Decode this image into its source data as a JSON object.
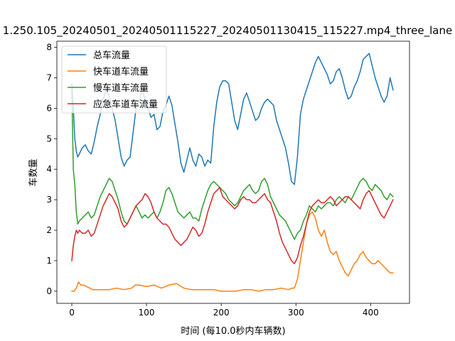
{
  "chart_data": {
    "type": "line",
    "title": "1.250.105_20240501_20240501115227_20240501130415_115227.mp4_three_lane",
    "xlabel": "时间 (每10.0秒内车辆数)",
    "ylabel": "车数量",
    "xlim": [
      -20,
      452
    ],
    "ylim": [
      -0.4,
      8.2
    ],
    "xticks": [
      0,
      100,
      200,
      300,
      400
    ],
    "yticks": [
      0,
      1,
      2,
      3,
      4,
      5,
      6,
      7,
      8
    ],
    "grid": false,
    "legend_position": "top-left",
    "series": [
      {
        "name": "总车流量",
        "color": "#1f77b4",
        "x": [
          0,
          2,
          4,
          6,
          8,
          10,
          14,
          18,
          22,
          26,
          30,
          34,
          38,
          42,
          46,
          50,
          54,
          58,
          62,
          66,
          70,
          74,
          78,
          82,
          86,
          90,
          94,
          98,
          102,
          106,
          110,
          114,
          118,
          122,
          126,
          130,
          134,
          138,
          142,
          146,
          150,
          154,
          158,
          162,
          166,
          170,
          174,
          178,
          182,
          186,
          190,
          194,
          198,
          202,
          206,
          210,
          214,
          218,
          222,
          226,
          230,
          234,
          238,
          242,
          246,
          250,
          254,
          258,
          262,
          266,
          270,
          274,
          278,
          282,
          286,
          290,
          294,
          298,
          302,
          306,
          310,
          314,
          318,
          322,
          326,
          330,
          334,
          338,
          342,
          346,
          350,
          354,
          358,
          362,
          366,
          370,
          374,
          378,
          382,
          386,
          390,
          394,
          398,
          402,
          406,
          410,
          414,
          418,
          422,
          426,
          430
        ],
        "values": [
          6.8,
          6.0,
          5.0,
          4.6,
          4.4,
          4.5,
          4.7,
          4.8,
          4.6,
          4.5,
          4.9,
          5.4,
          5.8,
          6.3,
          6.6,
          6.4,
          6.0,
          5.6,
          5.0,
          4.4,
          4.1,
          4.3,
          4.4,
          5.2,
          6.0,
          6.2,
          6.6,
          6.3,
          6.0,
          5.7,
          5.8,
          5.3,
          5.4,
          5.9,
          6.1,
          6.4,
          6.1,
          5.5,
          4.9,
          4.2,
          3.9,
          4.3,
          4.7,
          4.3,
          4.1,
          4.5,
          4.4,
          4.1,
          4.3,
          4.2,
          5.4,
          6.2,
          6.7,
          6.9,
          6.9,
          6.8,
          6.2,
          5.6,
          5.3,
          5.8,
          6.3,
          6.5,
          6.2,
          5.9,
          5.6,
          5.7,
          6.0,
          6.2,
          6.3,
          6.2,
          6.1,
          5.6,
          5.3,
          5.0,
          4.7,
          4.2,
          3.6,
          3.5,
          4.4,
          5.8,
          6.3,
          6.6,
          6.9,
          7.2,
          7.5,
          7.7,
          7.5,
          7.3,
          7.1,
          6.8,
          6.9,
          7.2,
          7.3,
          7.0,
          6.6,
          6.3,
          6.4,
          6.7,
          6.9,
          7.2,
          7.6,
          7.7,
          7.8,
          7.4,
          7.0,
          6.7,
          6.4,
          6.2,
          6.4,
          7.0,
          6.6
        ]
      },
      {
        "name": "快车道车流量",
        "color": "#ff7f0e",
        "x": [
          0,
          3,
          6,
          9,
          12,
          16,
          20,
          24,
          28,
          32,
          40,
          50,
          60,
          70,
          80,
          85,
          90,
          100,
          110,
          120,
          130,
          140,
          150,
          160,
          170,
          180,
          190,
          200,
          210,
          220,
          230,
          240,
          250,
          260,
          270,
          280,
          290,
          295,
          298,
          302,
          306,
          310,
          314,
          318,
          322,
          326,
          330,
          334,
          338,
          342,
          346,
          350,
          354,
          358,
          362,
          366,
          370,
          374,
          378,
          382,
          386,
          390,
          394,
          398,
          402,
          406,
          410,
          414,
          418,
          422,
          426,
          430
        ],
        "values": [
          0.0,
          0.0,
          0.1,
          0.3,
          0.2,
          0.2,
          0.15,
          0.1,
          0.05,
          0.05,
          0.05,
          0.05,
          0.1,
          0.05,
          0.1,
          0.2,
          0.2,
          0.15,
          0.2,
          0.1,
          0.2,
          0.25,
          0.1,
          0.05,
          0.05,
          0.05,
          0.05,
          0.0,
          0.0,
          0.0,
          0.05,
          0.05,
          0.0,
          0.05,
          0.05,
          0.1,
          0.05,
          0.1,
          0.1,
          0.4,
          1.0,
          1.6,
          2.2,
          2.5,
          2.6,
          2.4,
          2.0,
          1.8,
          2.0,
          1.6,
          1.3,
          1.2,
          1.3,
          1.0,
          0.8,
          0.6,
          0.5,
          0.7,
          0.9,
          1.0,
          1.2,
          1.3,
          1.1,
          1.0,
          0.9,
          0.9,
          1.0,
          0.9,
          0.8,
          0.7,
          0.6,
          0.6
        ]
      },
      {
        "name": "慢车道车流量",
        "color": "#2ca02c",
        "x": [
          0,
          2,
          4,
          6,
          8,
          10,
          14,
          18,
          22,
          26,
          30,
          34,
          38,
          42,
          46,
          50,
          54,
          58,
          62,
          66,
          70,
          74,
          78,
          82,
          86,
          90,
          94,
          98,
          102,
          106,
          110,
          114,
          118,
          122,
          126,
          130,
          134,
          138,
          142,
          146,
          150,
          154,
          158,
          162,
          166,
          170,
          174,
          178,
          182,
          186,
          190,
          194,
          198,
          202,
          206,
          210,
          214,
          218,
          222,
          226,
          230,
          234,
          238,
          242,
          246,
          250,
          254,
          258,
          262,
          266,
          270,
          274,
          278,
          282,
          286,
          290,
          294,
          298,
          302,
          306,
          310,
          314,
          318,
          322,
          326,
          330,
          334,
          338,
          342,
          346,
          350,
          354,
          358,
          362,
          366,
          370,
          374,
          378,
          382,
          386,
          390,
          394,
          398,
          402,
          406,
          410,
          414,
          418,
          422,
          426,
          430
        ],
        "values": [
          6.6,
          4.0,
          3.5,
          2.6,
          2.2,
          2.3,
          2.4,
          2.5,
          2.6,
          2.4,
          2.5,
          2.8,
          3.1,
          3.3,
          3.5,
          3.7,
          3.6,
          3.3,
          3.0,
          2.6,
          2.3,
          2.2,
          2.4,
          2.6,
          2.8,
          2.6,
          2.4,
          2.5,
          2.4,
          2.5,
          2.6,
          2.4,
          2.6,
          2.9,
          3.3,
          3.4,
          3.2,
          2.9,
          2.6,
          2.5,
          2.4,
          2.5,
          2.6,
          2.4,
          2.4,
          2.3,
          2.7,
          3.0,
          3.3,
          3.5,
          3.6,
          3.5,
          3.4,
          3.3,
          3.2,
          3.0,
          2.9,
          2.8,
          2.9,
          3.1,
          3.3,
          3.4,
          3.5,
          3.3,
          3.2,
          3.3,
          3.6,
          3.7,
          3.5,
          3.1,
          2.9,
          2.7,
          2.5,
          2.4,
          2.3,
          2.1,
          1.9,
          1.7,
          1.9,
          2.0,
          2.3,
          2.5,
          2.8,
          2.7,
          2.6,
          2.8,
          2.7,
          2.8,
          2.9,
          2.9,
          2.8,
          3.0,
          3.1,
          3.0,
          2.9,
          3.1,
          3.0,
          3.2,
          3.4,
          3.6,
          3.7,
          3.6,
          3.4,
          3.3,
          3.5,
          3.4,
          3.3,
          3.1,
          3.0,
          3.2,
          3.1
        ]
      },
      {
        "name": "应急车道车流量",
        "color": "#d62728",
        "x": [
          0,
          2,
          4,
          6,
          8,
          10,
          14,
          18,
          22,
          26,
          30,
          34,
          38,
          42,
          46,
          50,
          54,
          58,
          62,
          66,
          70,
          74,
          78,
          82,
          86,
          90,
          94,
          98,
          102,
          106,
          110,
          114,
          118,
          122,
          126,
          130,
          134,
          138,
          142,
          146,
          150,
          154,
          158,
          162,
          166,
          170,
          174,
          178,
          182,
          186,
          190,
          194,
          198,
          202,
          206,
          210,
          214,
          218,
          222,
          226,
          230,
          234,
          238,
          242,
          246,
          250,
          254,
          258,
          262,
          266,
          270,
          274,
          278,
          282,
          286,
          290,
          294,
          298,
          302,
          306,
          310,
          314,
          318,
          322,
          326,
          330,
          334,
          338,
          342,
          346,
          350,
          354,
          358,
          362,
          366,
          370,
          374,
          378,
          382,
          386,
          390,
          394,
          398,
          402,
          406,
          410,
          414,
          418,
          422,
          426,
          430
        ],
        "values": [
          1.0,
          1.5,
          1.8,
          2.0,
          1.9,
          2.0,
          1.9,
          1.9,
          2.0,
          1.8,
          1.9,
          2.2,
          2.5,
          2.8,
          3.0,
          3.2,
          3.1,
          2.9,
          2.7,
          2.3,
          2.1,
          2.2,
          2.4,
          2.6,
          2.8,
          2.9,
          3.0,
          3.2,
          3.1,
          2.9,
          2.6,
          2.4,
          2.3,
          2.2,
          2.2,
          2.1,
          1.9,
          1.7,
          1.6,
          1.5,
          1.6,
          1.7,
          1.9,
          2.1,
          2.0,
          1.8,
          1.9,
          2.2,
          2.6,
          2.9,
          3.2,
          3.3,
          3.4,
          3.1,
          3.0,
          2.9,
          2.8,
          2.7,
          2.8,
          3.0,
          3.1,
          3.0,
          3.0,
          2.9,
          2.9,
          3.0,
          3.1,
          3.2,
          3.0,
          2.9,
          2.6,
          2.3,
          1.9,
          1.6,
          1.4,
          1.2,
          1.0,
          0.9,
          1.1,
          1.5,
          1.8,
          2.2,
          2.6,
          2.8,
          2.9,
          3.0,
          2.9,
          2.9,
          3.0,
          3.1,
          3.0,
          2.8,
          2.9,
          3.0,
          3.1,
          3.1,
          3.0,
          2.9,
          2.8,
          2.7,
          3.0,
          3.2,
          3.3,
          3.1,
          2.9,
          2.7,
          2.5,
          2.4,
          2.6,
          2.8,
          3.0
        ]
      }
    ]
  }
}
